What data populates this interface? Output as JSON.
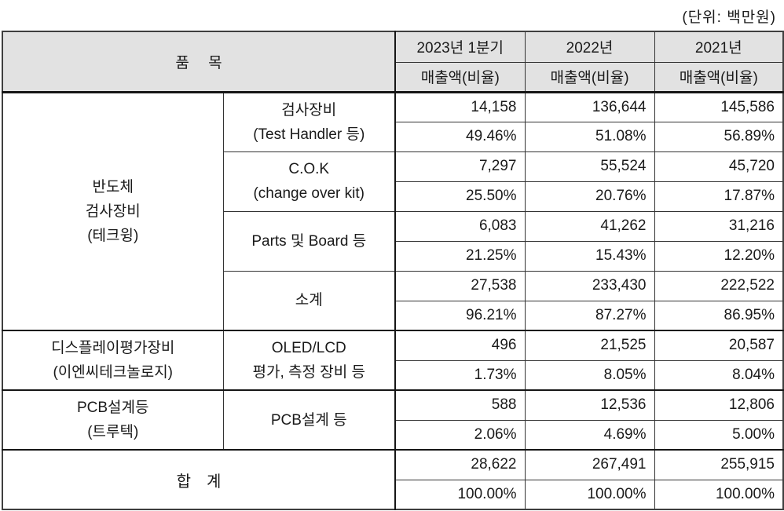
{
  "unit_label": "(단위: 백만원)",
  "header": {
    "item_label": "품　 목",
    "periods": [
      "2023년 1분기",
      "2022년",
      "2021년"
    ],
    "measure_label": "매출액(비율)"
  },
  "colors": {
    "header_bg": "#e2e2e2",
    "border": "#333333",
    "thick_border": "#161616"
  },
  "table": {
    "groups": [
      {
        "category": "반도체\n검사장비\n(테크윙)",
        "items": [
          {
            "name": "검사장비\n(Test Handler 등)",
            "amounts": [
              "14,158",
              "136,644",
              "145,586"
            ],
            "ratios": [
              "49.46%",
              "51.08%",
              "56.89%"
            ]
          },
          {
            "name": "C.O.K\n(change over kit)",
            "amounts": [
              "7,297",
              "55,524",
              "45,720"
            ],
            "ratios": [
              "25.50%",
              "20.76%",
              "17.87%"
            ]
          },
          {
            "name": "Parts 및 Board 등",
            "amounts": [
              "6,083",
              "41,262",
              "31,216"
            ],
            "ratios": [
              "21.25%",
              "15.43%",
              "12.20%"
            ]
          },
          {
            "name": "소계",
            "amounts": [
              "27,538",
              "233,430",
              "222,522"
            ],
            "ratios": [
              "96.21%",
              "87.27%",
              "86.95%"
            ]
          }
        ]
      },
      {
        "category": "디스플레이평가장비\n(이엔씨테크놀로지)",
        "items": [
          {
            "name": "OLED/LCD\n평가, 측정 장비 등",
            "amounts": [
              "496",
              "21,525",
              "20,587"
            ],
            "ratios": [
              "1.73%",
              "8.05%",
              "8.04%"
            ]
          }
        ]
      },
      {
        "category": "PCB설계등\n(트루텍)",
        "items": [
          {
            "name": "PCB설계 등",
            "amounts": [
              "588",
              "12,536",
              "12,806"
            ],
            "ratios": [
              "2.06%",
              "4.69%",
              "5.00%"
            ]
          }
        ]
      }
    ],
    "total": {
      "label": "합　계",
      "amounts": [
        "28,622",
        "267,491",
        "255,915"
      ],
      "ratios": [
        "100.00%",
        "100.00%",
        "100.00%"
      ]
    }
  }
}
